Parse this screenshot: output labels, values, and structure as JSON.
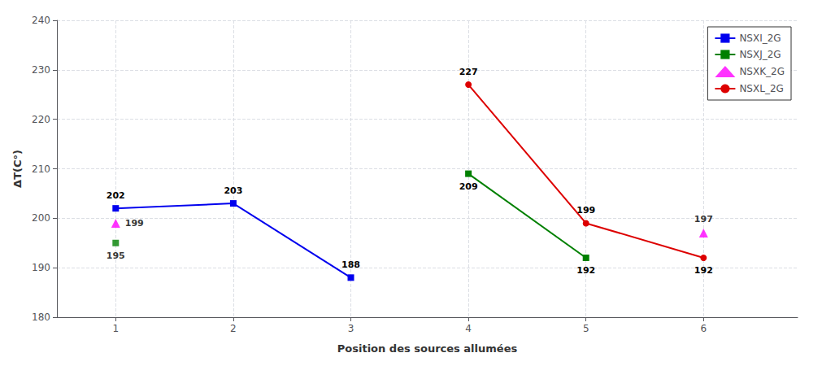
{
  "chart_data": {
    "type": "line",
    "xlabel": "Position des sources allumées",
    "ylabel": "ΔT(C°)",
    "xlim": [
      0.5,
      6.8
    ],
    "ylim": [
      180,
      240
    ],
    "xticks": [
      1,
      2,
      3,
      4,
      5,
      6
    ],
    "yticks": [
      180,
      190,
      200,
      210,
      220,
      230,
      240
    ],
    "grid": true,
    "legend": "upper right",
    "data_labels": true,
    "series": [
      {
        "name": "NSXI_2G",
        "type": "line",
        "color": "#0000EE",
        "marker": "square",
        "line_style": "solid",
        "x": [
          1,
          2,
          3
        ],
        "values": [
          202,
          203,
          188
        ]
      },
      {
        "name": "NSXJ_2G",
        "type": "line",
        "color": "#008000",
        "marker": "square",
        "line_style": "solid",
        "x": [
          4,
          5
        ],
        "values": [
          209,
          192
        ],
        "x_isolated": [
          1
        ],
        "values_isolated": [
          195
        ]
      },
      {
        "name": "NSXK_2G",
        "type": "scatter",
        "color": "#FF00FF",
        "marker": "triangle",
        "x": [
          1,
          6
        ],
        "values": [
          199,
          197
        ]
      },
      {
        "name": "NSXL_2G",
        "type": "line",
        "color": "#DD0000",
        "marker": "circle",
        "line_style": "solid",
        "x": [
          4,
          5,
          6
        ],
        "values": [
          227,
          199,
          192
        ]
      }
    ]
  }
}
